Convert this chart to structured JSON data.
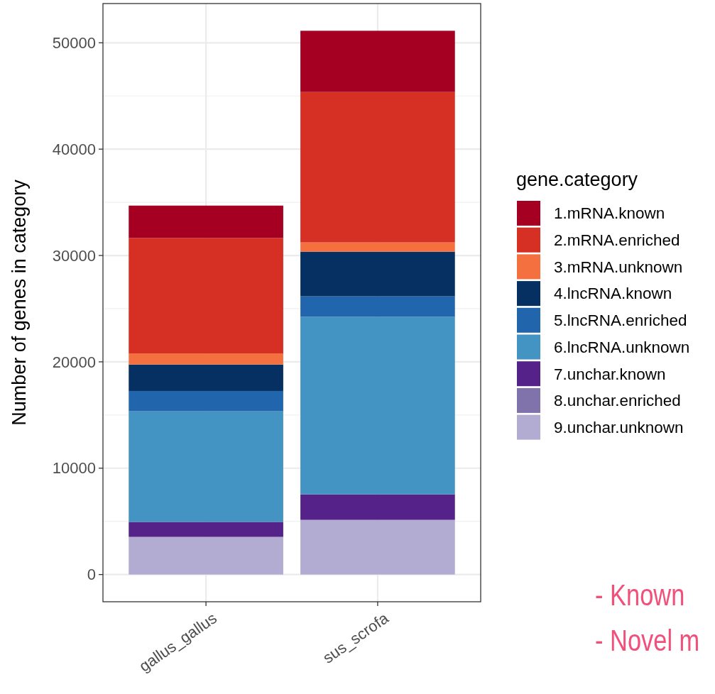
{
  "chart_data": {
    "type": "bar",
    "stacked": true,
    "ylabel": "Number of genes in category",
    "legend_title": "gene.category",
    "legend": "right",
    "grid": true,
    "categories": [
      "gallus_gallus",
      "sus_scrofa"
    ],
    "ylim": [
      -2560,
      53690
    ],
    "yticks": [
      0,
      10000,
      20000,
      30000,
      40000,
      50000
    ],
    "series": [
      {
        "name": "9.unchar.unknown",
        "color": "#b2abd2",
        "values": [
          3540,
          5140
        ]
      },
      {
        "name": "8.unchar.enriched",
        "color": "#8073ac",
        "values": [
          0,
          0
        ]
      },
      {
        "name": "7.unchar.known",
        "color": "#542288",
        "values": [
          1410,
          2400
        ]
      },
      {
        "name": "6.lncRNA.unknown",
        "color": "#4393c3",
        "values": [
          10400,
          16690
        ]
      },
      {
        "name": "5.lncRNA.enriched",
        "color": "#2166ac",
        "values": [
          1910,
          1930
        ]
      },
      {
        "name": "4.lncRNA.known",
        "color": "#053061",
        "values": [
          2490,
          4200
        ]
      },
      {
        "name": "3.mRNA.unknown",
        "color": "#f4713f",
        "values": [
          1040,
          870
        ]
      },
      {
        "name": "2.mRNA.enriched",
        "color": "#d62f24",
        "values": [
          10860,
          14140
        ]
      },
      {
        "name": "1.mRNA.known",
        "color": "#a50021",
        "values": [
          3040,
          5760
        ]
      }
    ],
    "annotations": [
      "- Known",
      "- Novel m"
    ]
  }
}
